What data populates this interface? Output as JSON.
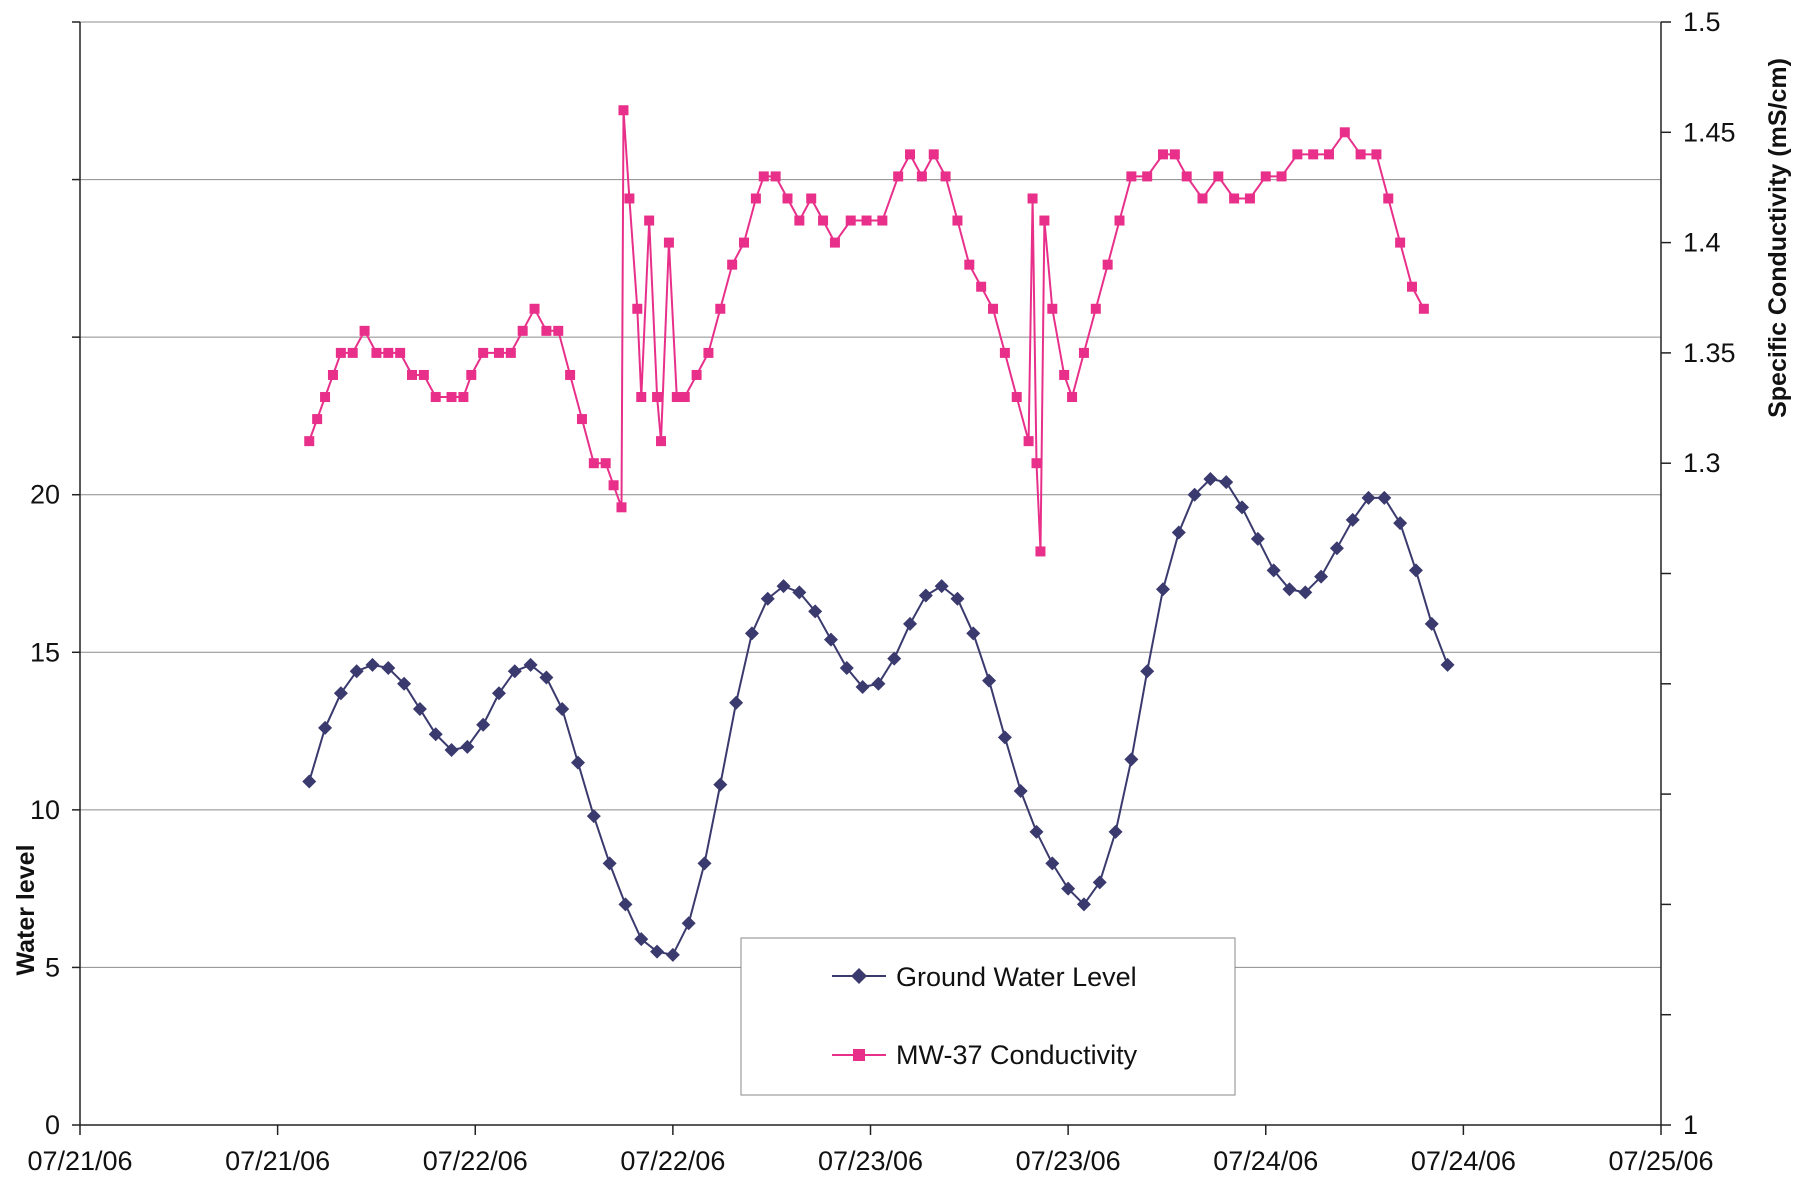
{
  "chart_data": {
    "type": "line",
    "x_tick_labels": [
      "07/21/06",
      "07/21/06",
      "07/22/06",
      "07/22/06",
      "07/23/06",
      "07/23/06",
      "07/24/06",
      "07/24/06",
      "07/25/06"
    ],
    "xlim_days": [
      0,
      4
    ],
    "left_axis": {
      "label": "Water level",
      "ylim": [
        0,
        35
      ],
      "tick_labels": [
        "0",
        "5",
        "10",
        "15",
        "20"
      ],
      "tick_values": [
        0,
        5,
        10,
        15,
        20
      ],
      "gridlines": [
        0,
        5,
        10,
        15,
        20,
        25,
        30,
        35
      ]
    },
    "right_axis": {
      "label": "Specific Conductivity (mS/cm)",
      "ylim": [
        1,
        1.5
      ],
      "tick_labels": [
        "1",
        "1.3",
        "1.35",
        "1.4",
        "1.45",
        "1.5"
      ],
      "tick_values": [
        1,
        1.3,
        1.35,
        1.4,
        1.45,
        1.5
      ],
      "minor_ticks": [
        1.05,
        1.1,
        1.15,
        1.2,
        1.25
      ]
    },
    "grid": true,
    "legend_position": "bottom-center",
    "series": [
      {
        "name": "Ground Water Level",
        "axis": "left",
        "color": "#3a3a6e",
        "marker": "diamond",
        "points": [
          [
            0.58,
            10.9
          ],
          [
            0.62,
            12.6
          ],
          [
            0.66,
            13.7
          ],
          [
            0.7,
            14.4
          ],
          [
            0.74,
            14.6
          ],
          [
            0.78,
            14.5
          ],
          [
            0.82,
            14.0
          ],
          [
            0.86,
            13.2
          ],
          [
            0.9,
            12.4
          ],
          [
            0.94,
            11.9
          ],
          [
            0.98,
            12.0
          ],
          [
            1.02,
            12.7
          ],
          [
            1.06,
            13.7
          ],
          [
            1.1,
            14.4
          ],
          [
            1.14,
            14.6
          ],
          [
            1.18,
            14.2
          ],
          [
            1.22,
            13.2
          ],
          [
            1.26,
            11.5
          ],
          [
            1.3,
            9.8
          ],
          [
            1.34,
            8.3
          ],
          [
            1.38,
            7.0
          ],
          [
            1.42,
            5.9
          ],
          [
            1.46,
            5.5
          ],
          [
            1.5,
            5.4
          ],
          [
            1.54,
            6.4
          ],
          [
            1.58,
            8.3
          ],
          [
            1.62,
            10.8
          ],
          [
            1.66,
            13.4
          ],
          [
            1.7,
            15.6
          ],
          [
            1.74,
            16.7
          ],
          [
            1.78,
            17.1
          ],
          [
            1.82,
            16.9
          ],
          [
            1.86,
            16.3
          ],
          [
            1.9,
            15.4
          ],
          [
            1.94,
            14.5
          ],
          [
            1.98,
            13.9
          ],
          [
            2.02,
            14.0
          ],
          [
            2.06,
            14.8
          ],
          [
            2.1,
            15.9
          ],
          [
            2.14,
            16.8
          ],
          [
            2.18,
            17.1
          ],
          [
            2.22,
            16.7
          ],
          [
            2.26,
            15.6
          ],
          [
            2.3,
            14.1
          ],
          [
            2.34,
            12.3
          ],
          [
            2.38,
            10.6
          ],
          [
            2.42,
            9.3
          ],
          [
            2.46,
            8.3
          ],
          [
            2.5,
            7.5
          ],
          [
            2.54,
            7.0
          ],
          [
            2.58,
            7.7
          ],
          [
            2.62,
            9.3
          ],
          [
            2.66,
            11.6
          ],
          [
            2.7,
            14.4
          ],
          [
            2.74,
            17.0
          ],
          [
            2.78,
            18.8
          ],
          [
            2.82,
            20.0
          ],
          [
            2.86,
            20.5
          ],
          [
            2.9,
            20.4
          ],
          [
            2.94,
            19.6
          ],
          [
            2.98,
            18.6
          ],
          [
            3.02,
            17.6
          ],
          [
            3.06,
            17.0
          ],
          [
            3.1,
            16.9
          ],
          [
            3.14,
            17.4
          ],
          [
            3.18,
            18.3
          ],
          [
            3.22,
            19.2
          ],
          [
            3.26,
            19.9
          ],
          [
            3.3,
            19.9
          ],
          [
            3.34,
            19.1
          ],
          [
            3.38,
            17.6
          ],
          [
            3.42,
            15.9
          ],
          [
            3.46,
            14.6
          ]
        ]
      },
      {
        "name": "MW-37 Conductivity",
        "axis": "right",
        "color": "#e8308a",
        "marker": "square",
        "points": [
          [
            0.58,
            1.31
          ],
          [
            0.6,
            1.32
          ],
          [
            0.62,
            1.33
          ],
          [
            0.64,
            1.34
          ],
          [
            0.66,
            1.35
          ],
          [
            0.69,
            1.35
          ],
          [
            0.72,
            1.36
          ],
          [
            0.75,
            1.35
          ],
          [
            0.78,
            1.35
          ],
          [
            0.81,
            1.35
          ],
          [
            0.84,
            1.34
          ],
          [
            0.87,
            1.34
          ],
          [
            0.9,
            1.33
          ],
          [
            0.94,
            1.33
          ],
          [
            0.97,
            1.33
          ],
          [
            0.99,
            1.34
          ],
          [
            1.02,
            1.35
          ],
          [
            1.06,
            1.35
          ],
          [
            1.09,
            1.35
          ],
          [
            1.12,
            1.36
          ],
          [
            1.15,
            1.37
          ],
          [
            1.18,
            1.36
          ],
          [
            1.21,
            1.36
          ],
          [
            1.24,
            1.34
          ],
          [
            1.27,
            1.32
          ],
          [
            1.3,
            1.3
          ],
          [
            1.33,
            1.3
          ],
          [
            1.35,
            1.29
          ],
          [
            1.37,
            1.28
          ],
          [
            1.375,
            1.46
          ],
          [
            1.39,
            1.42
          ],
          [
            1.41,
            1.37
          ],
          [
            1.42,
            1.33
          ],
          [
            1.44,
            1.41
          ],
          [
            1.46,
            1.33
          ],
          [
            1.47,
            1.31
          ],
          [
            1.49,
            1.4
          ],
          [
            1.51,
            1.33
          ],
          [
            1.53,
            1.33
          ],
          [
            1.56,
            1.34
          ],
          [
            1.59,
            1.35
          ],
          [
            1.62,
            1.37
          ],
          [
            1.65,
            1.39
          ],
          [
            1.68,
            1.4
          ],
          [
            1.71,
            1.42
          ],
          [
            1.73,
            1.43
          ],
          [
            1.76,
            1.43
          ],
          [
            1.79,
            1.42
          ],
          [
            1.82,
            1.41
          ],
          [
            1.85,
            1.42
          ],
          [
            1.88,
            1.41
          ],
          [
            1.91,
            1.4
          ],
          [
            1.95,
            1.41
          ],
          [
            1.99,
            1.41
          ],
          [
            2.03,
            1.41
          ],
          [
            2.07,
            1.43
          ],
          [
            2.1,
            1.44
          ],
          [
            2.13,
            1.43
          ],
          [
            2.16,
            1.44
          ],
          [
            2.19,
            1.43
          ],
          [
            2.22,
            1.41
          ],
          [
            2.25,
            1.39
          ],
          [
            2.28,
            1.38
          ],
          [
            2.31,
            1.37
          ],
          [
            2.34,
            1.35
          ],
          [
            2.37,
            1.33
          ],
          [
            2.4,
            1.31
          ],
          [
            2.41,
            1.42
          ],
          [
            2.42,
            1.3
          ],
          [
            2.43,
            1.26
          ],
          [
            2.44,
            1.41
          ],
          [
            2.46,
            1.37
          ],
          [
            2.49,
            1.34
          ],
          [
            2.51,
            1.33
          ],
          [
            2.54,
            1.35
          ],
          [
            2.57,
            1.37
          ],
          [
            2.6,
            1.39
          ],
          [
            2.63,
            1.41
          ],
          [
            2.66,
            1.43
          ],
          [
            2.7,
            1.43
          ],
          [
            2.74,
            1.44
          ],
          [
            2.77,
            1.44
          ],
          [
            2.8,
            1.43
          ],
          [
            2.84,
            1.42
          ],
          [
            2.88,
            1.43
          ],
          [
            2.92,
            1.42
          ],
          [
            2.96,
            1.42
          ],
          [
            3.0,
            1.43
          ],
          [
            3.04,
            1.43
          ],
          [
            3.08,
            1.44
          ],
          [
            3.12,
            1.44
          ],
          [
            3.16,
            1.44
          ],
          [
            3.2,
            1.45
          ],
          [
            3.24,
            1.44
          ],
          [
            3.28,
            1.44
          ],
          [
            3.31,
            1.42
          ],
          [
            3.34,
            1.4
          ],
          [
            3.37,
            1.38
          ],
          [
            3.4,
            1.37
          ]
        ]
      }
    ]
  }
}
